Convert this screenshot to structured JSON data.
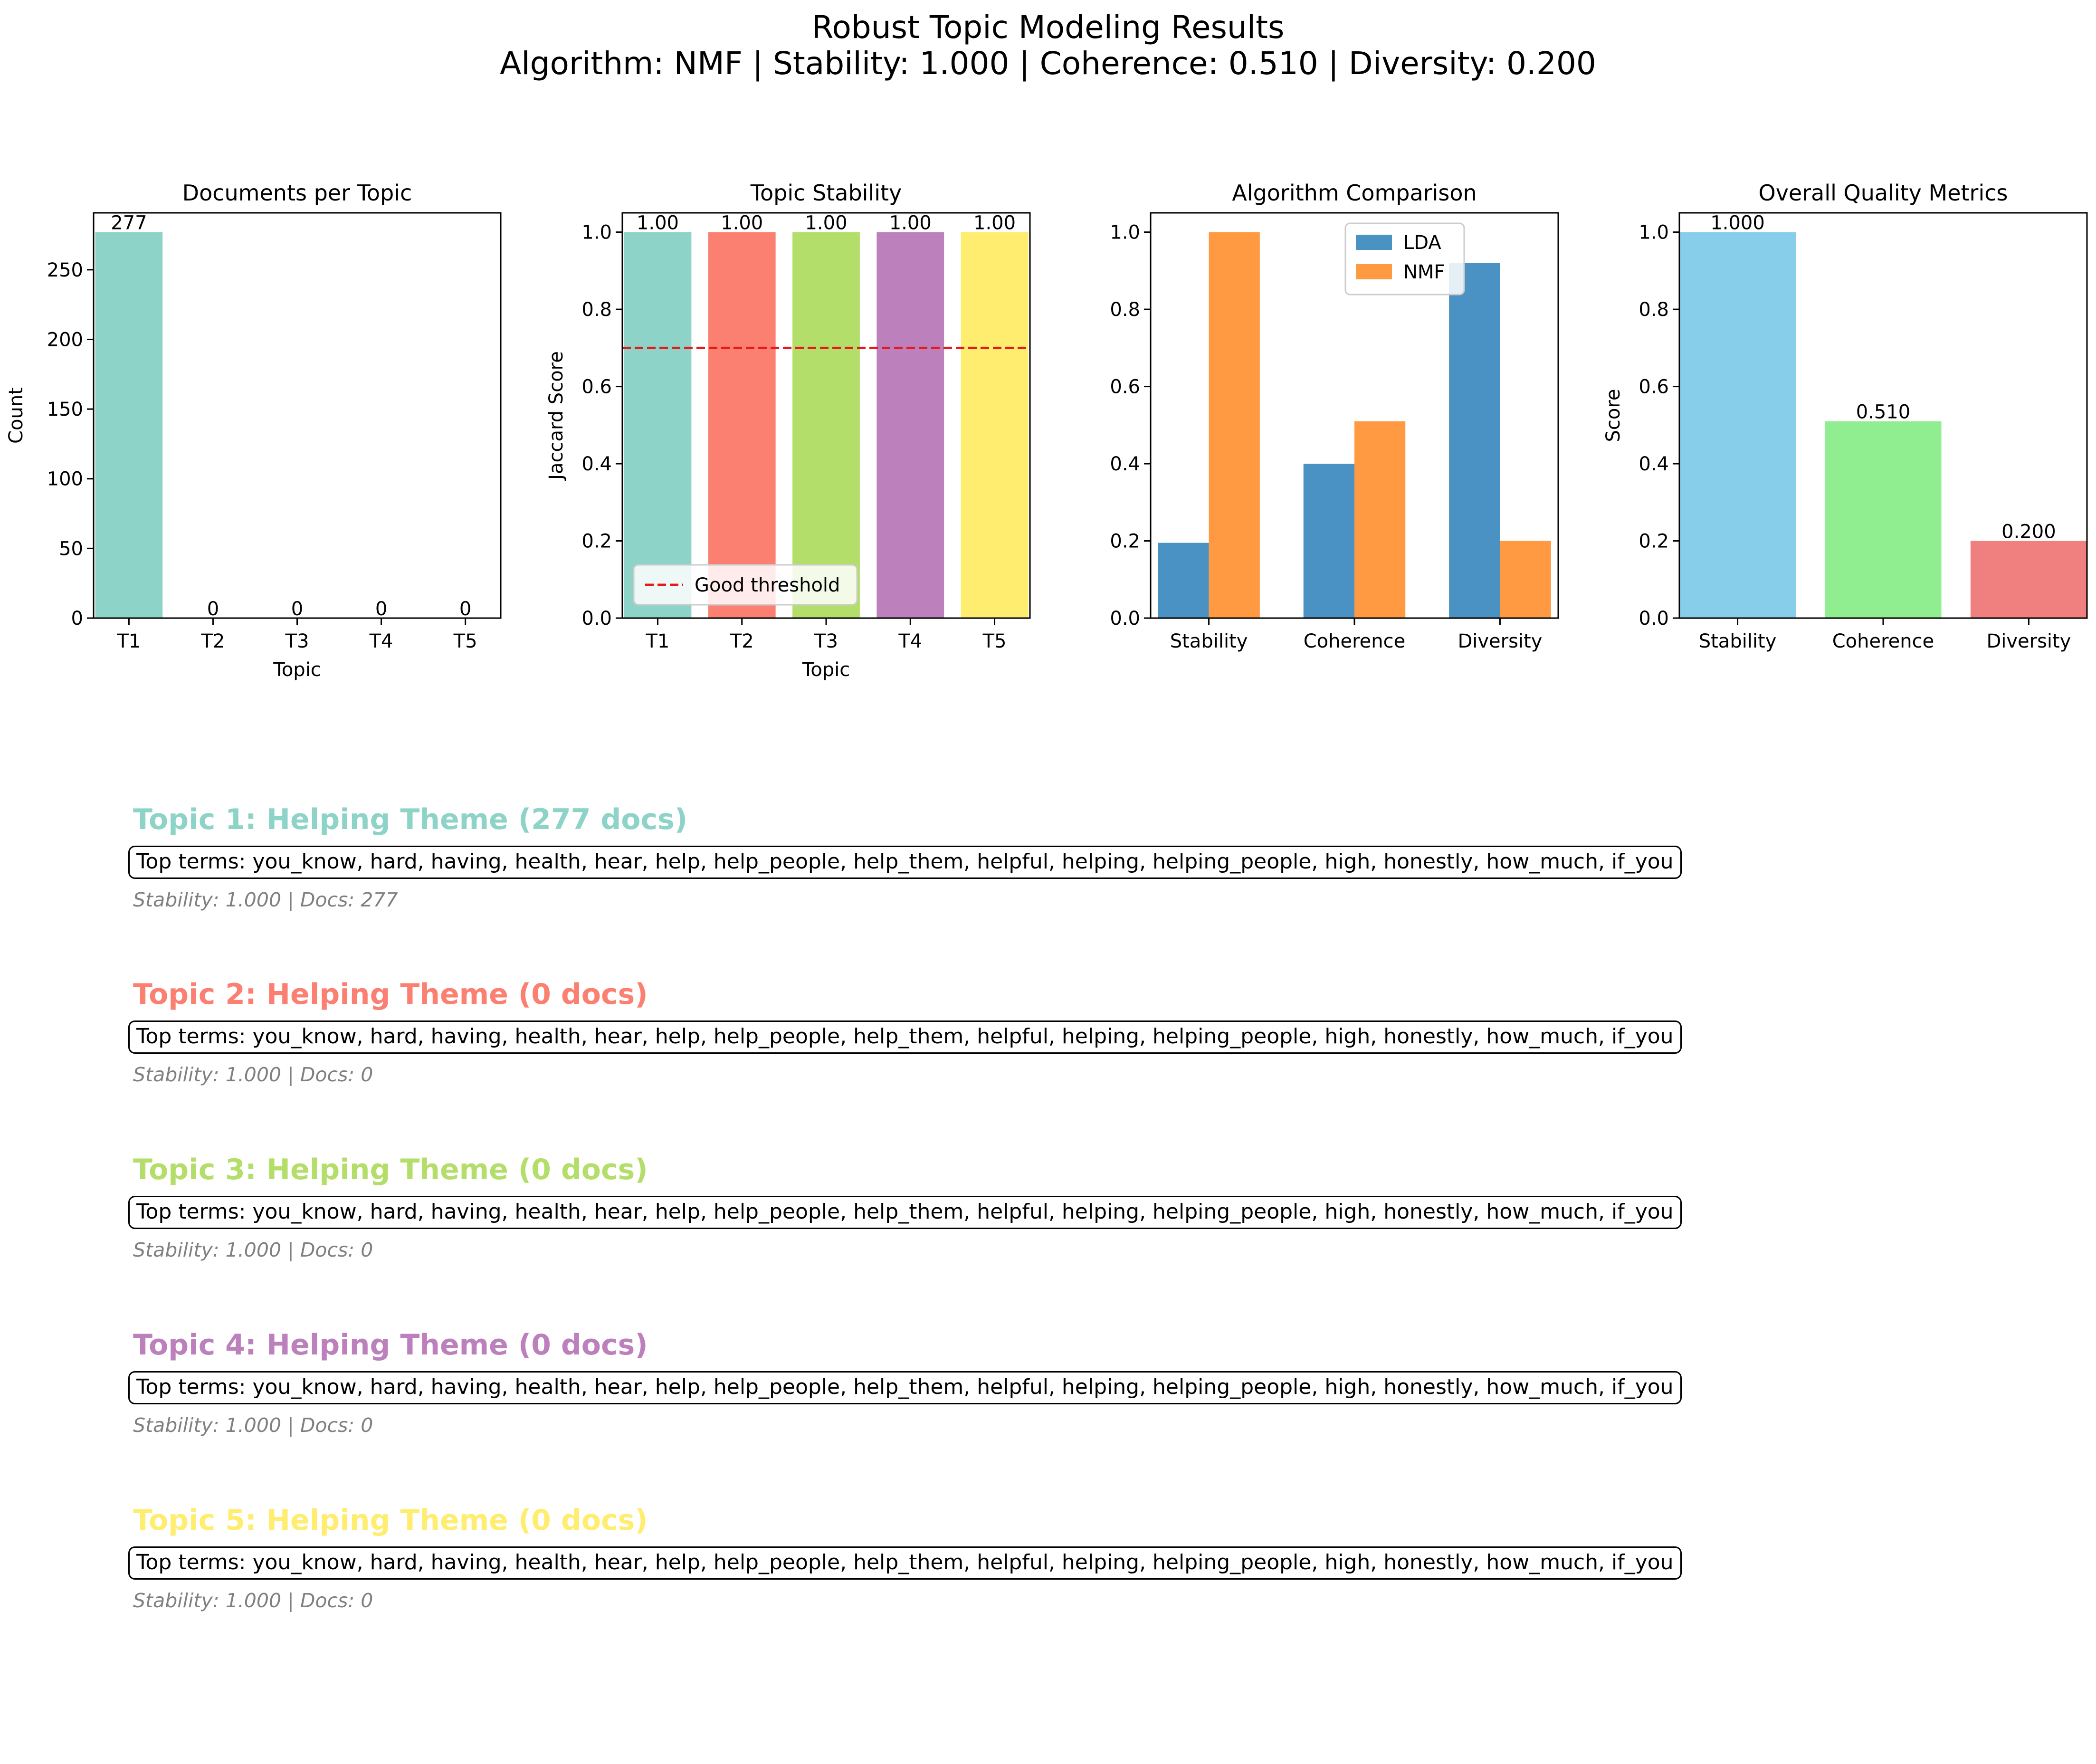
{
  "figure": {
    "title_line1": "Robust Topic Modeling Results",
    "title_line2": "Algorithm: NMF | Stability: 1.000 | Coherence: 0.510 | Diversity: 0.200"
  },
  "chart_data": [
    {
      "id": "docs",
      "type": "bar",
      "title": "Documents per Topic",
      "xlabel": "Topic",
      "ylabel": "Count",
      "categories": [
        "T1",
        "T2",
        "T3",
        "T4",
        "T5"
      ],
      "values": [
        277,
        0,
        0,
        0,
        0
      ],
      "value_labels": [
        "277",
        "0",
        "0",
        "0",
        "0"
      ],
      "colors": [
        "#8dd3c7",
        "#fb8072",
        "#b3de69",
        "#bc80bd",
        "#ffed6f"
      ],
      "ylim": [
        0,
        290.85
      ],
      "yticks": [
        0,
        50,
        100,
        150,
        200,
        250
      ]
    },
    {
      "id": "stability",
      "type": "bar",
      "title": "Topic Stability",
      "xlabel": "Topic",
      "ylabel": "Jaccard Score",
      "categories": [
        "T1",
        "T2",
        "T3",
        "T4",
        "T5"
      ],
      "values": [
        1.0,
        1.0,
        1.0,
        1.0,
        1.0
      ],
      "value_labels": [
        "1.00",
        "1.00",
        "1.00",
        "1.00",
        "1.00"
      ],
      "colors": [
        "#8dd3c7",
        "#fb8072",
        "#b3de69",
        "#bc80bd",
        "#ffed6f"
      ],
      "ylim": [
        0,
        1.05
      ],
      "yticks": [
        0.0,
        0.2,
        0.4,
        0.6,
        0.8,
        1.0
      ],
      "ytick_labels": [
        "0.0",
        "0.2",
        "0.4",
        "0.6",
        "0.8",
        "1.0"
      ],
      "threshold": {
        "value": 0.7,
        "label": "Good threshold",
        "color": "#e8191c"
      },
      "legend": "lower-left"
    },
    {
      "id": "comparison",
      "type": "bar",
      "title": "Algorithm Comparison",
      "categories": [
        "Stability",
        "Coherence",
        "Diversity"
      ],
      "series": [
        {
          "name": "LDA",
          "values": [
            0.195,
            0.4,
            0.92
          ],
          "color": "#4a92c4"
        },
        {
          "name": "NMF",
          "values": [
            1.0,
            0.51,
            0.2
          ],
          "color": "#ff9a42"
        }
      ],
      "ylim": [
        0,
        1.05
      ],
      "yticks": [
        0.0,
        0.2,
        0.4,
        0.6,
        0.8,
        1.0
      ],
      "ytick_labels": [
        "0.0",
        "0.2",
        "0.4",
        "0.6",
        "0.8",
        "1.0"
      ],
      "legend": "upper-center"
    },
    {
      "id": "quality",
      "type": "bar",
      "title": "Overall Quality Metrics",
      "ylabel": "Score",
      "categories": [
        "Stability",
        "Coherence",
        "Diversity"
      ],
      "values": [
        1.0,
        0.51,
        0.2
      ],
      "value_labels": [
        "1.000",
        "0.510",
        "0.200"
      ],
      "colors": [
        "#87ceeb",
        "#90ee90",
        "#f08080"
      ],
      "ylim": [
        0,
        1.05
      ],
      "yticks": [
        0.0,
        0.2,
        0.4,
        0.6,
        0.8,
        1.0
      ],
      "ytick_labels": [
        "0.0",
        "0.2",
        "0.4",
        "0.6",
        "0.8",
        "1.0"
      ]
    }
  ],
  "topics": [
    {
      "title": "Topic 1: Helping Theme (277 docs)",
      "color": "#8dd3c7",
      "terms": "Top terms: you_know, hard, having, health, hear, help, help_people, help_them, helpful, helping, helping_people, high, honestly, how_much, if_you",
      "meta": "Stability: 1.000 | Docs: 277"
    },
    {
      "title": "Topic 2: Helping Theme (0 docs)",
      "color": "#fb8072",
      "terms": "Top terms: you_know, hard, having, health, hear, help, help_people, help_them, helpful, helping, helping_people, high, honestly, how_much, if_you",
      "meta": "Stability: 1.000 | Docs: 0"
    },
    {
      "title": "Topic 3: Helping Theme (0 docs)",
      "color": "#b3de69",
      "terms": "Top terms: you_know, hard, having, health, hear, help, help_people, help_them, helpful, helping, helping_people, high, honestly, how_much, if_you",
      "meta": "Stability: 1.000 | Docs: 0"
    },
    {
      "title": "Topic 4: Helping Theme (0 docs)",
      "color": "#bc80bd",
      "terms": "Top terms: you_know, hard, having, health, hear, help, help_people, help_them, helpful, helping, helping_people, high, honestly, how_much, if_you",
      "meta": "Stability: 1.000 | Docs: 0"
    },
    {
      "title": "Topic 5: Helping Theme (0 docs)",
      "color": "#ffed6f",
      "terms": "Top terms: you_know, hard, having, health, hear, help, help_people, help_them, helpful, helping, helping_people, high, honestly, how_much, if_you",
      "meta": "Stability: 1.000 | Docs: 0"
    }
  ]
}
